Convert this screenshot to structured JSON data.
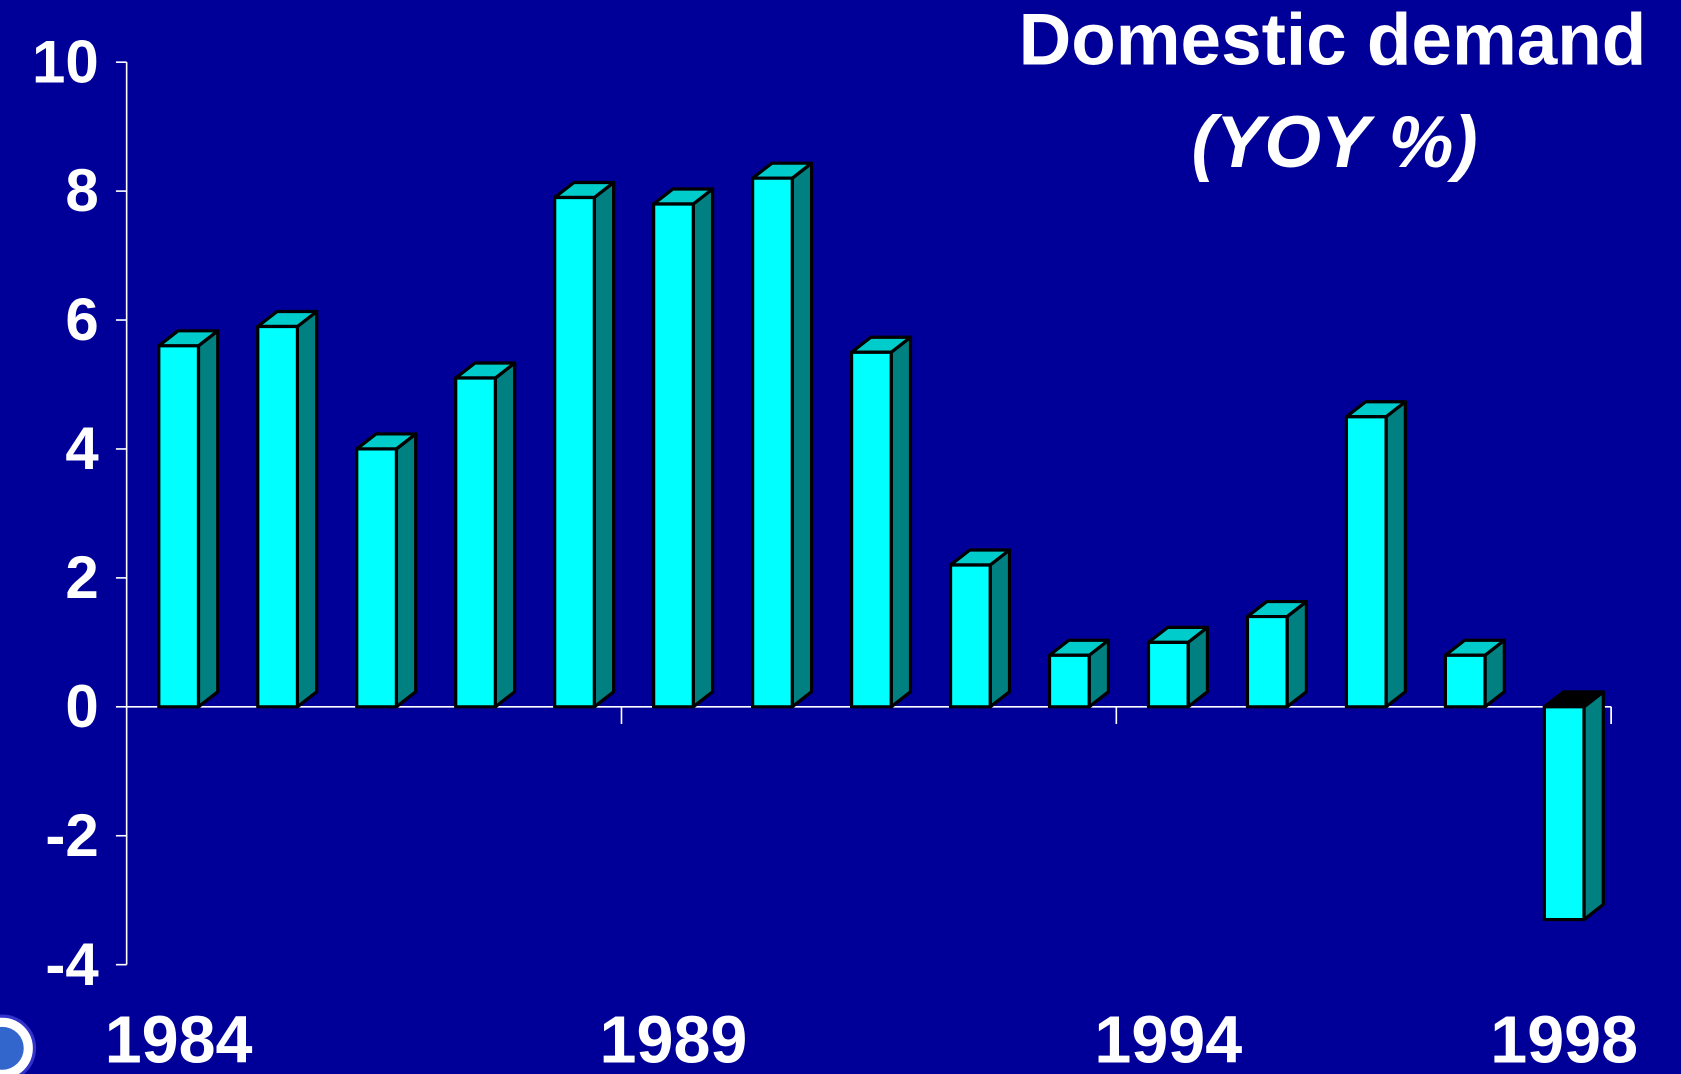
{
  "chart_data": {
    "type": "bar3d",
    "title": "Domestic demand",
    "subtitle": "(YOY %)",
    "categories": [
      "1984",
      null,
      null,
      null,
      null,
      "1989",
      null,
      null,
      null,
      null,
      "1994",
      null,
      null,
      null,
      "1998"
    ],
    "values": [
      5.6,
      5.9,
      4.0,
      5.1,
      7.9,
      7.8,
      8.2,
      5.5,
      2.2,
      0.8,
      1.0,
      1.4,
      4.5,
      0.8,
      -3.3
    ],
    "color": "#00ffff",
    "ylim": [
      -4,
      10
    ],
    "yticks": [
      -4,
      -2,
      0,
      2,
      4,
      6,
      8,
      10
    ]
  }
}
